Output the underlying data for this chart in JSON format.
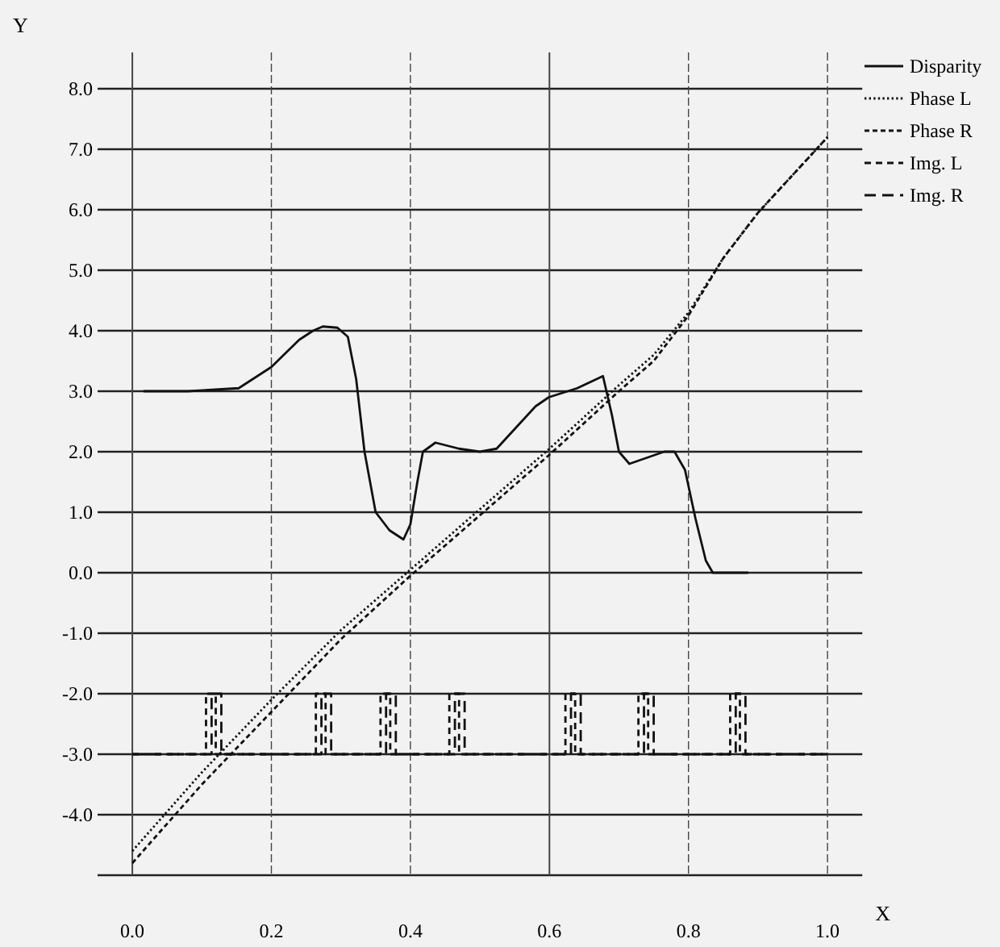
{
  "chart_data": {
    "type": "line",
    "xlabel": "X",
    "ylabel": "Y",
    "xlim": [
      -0.05,
      1.05
    ],
    "xticks": [
      {
        "value": 0,
        "label": "0.0"
      },
      {
        "value": 0.2,
        "label": "0.2"
      },
      {
        "value": 0.4,
        "label": "0.4"
      },
      {
        "value": 0.6,
        "label": "0.6"
      },
      {
        "value": 0.8,
        "label": "0.8"
      },
      {
        "value": 1,
        "label": "1.0"
      }
    ],
    "ylim": [
      -5,
      8.6
    ],
    "yticks": [
      {
        "value": -5,
        "label": null
      },
      {
        "value": -4,
        "label": "-4.0"
      },
      {
        "value": -3,
        "label": "-3.0"
      },
      {
        "value": -2,
        "label": "-2.0"
      },
      {
        "value": -1,
        "label": "-1.0"
      },
      {
        "value": 0,
        "label": "0.0"
      },
      {
        "value": 1,
        "label": "1.0"
      },
      {
        "value": 2,
        "label": "2.0"
      },
      {
        "value": 3,
        "label": "3.0"
      },
      {
        "value": 4,
        "label": "4.0"
      },
      {
        "value": 5,
        "label": "5.0"
      },
      {
        "value": 6,
        "label": "6.0"
      },
      {
        "value": 7,
        "label": "7.0"
      },
      {
        "value": 8,
        "label": "8.0"
      }
    ],
    "grid": true,
    "legend": "top right",
    "series": [
      {
        "name": "Disparity",
        "color": "#111111",
        "line_style": "solid",
        "x": [
          0.016,
          0.08,
          0.153,
          0.2,
          0.24,
          0.26,
          0.274,
          0.295,
          0.31,
          0.322,
          0.334,
          0.35,
          0.37,
          0.39,
          0.4,
          0.41,
          0.418,
          0.436,
          0.47,
          0.5,
          0.524,
          0.56,
          0.58,
          0.599,
          0.64,
          0.677,
          0.69,
          0.7,
          0.715,
          0.74,
          0.765,
          0.78,
          0.795,
          0.81,
          0.825,
          0.835,
          0.86,
          0.886
        ],
        "values": [
          3.0,
          3.0,
          3.05,
          3.4,
          3.85,
          4.0,
          4.07,
          4.05,
          3.9,
          3.2,
          2.0,
          1.0,
          0.7,
          0.55,
          0.8,
          1.5,
          2.0,
          2.15,
          2.05,
          2.0,
          2.05,
          2.5,
          2.75,
          2.9,
          3.05,
          3.25,
          2.6,
          2.0,
          1.8,
          1.9,
          2.0,
          2.0,
          1.7,
          0.9,
          0.2,
          0.0,
          0.0,
          0.0
        ]
      },
      {
        "name": "Phase L",
        "color": "#111111",
        "line_style": "dotted",
        "x": [
          0,
          0.1,
          0.2,
          0.3,
          0.4,
          0.5,
          0.6,
          0.7,
          0.75,
          0.8,
          0.85,
          0.9,
          1.0
        ],
        "values": [
          -4.6,
          -3.3,
          -2.1,
          -0.95,
          0.05,
          1.05,
          2.05,
          3.1,
          3.6,
          4.3,
          5.2,
          5.95,
          7.2
        ]
      },
      {
        "name": "Phase R",
        "color": "#111111",
        "line_style": "dashed",
        "x": [
          0,
          0.1,
          0.2,
          0.3,
          0.4,
          0.5,
          0.6,
          0.7,
          0.75,
          0.8,
          0.85,
          0.9,
          1.0
        ],
        "values": [
          -4.8,
          -3.5,
          -2.3,
          -1.1,
          -0.05,
          0.95,
          1.95,
          3.0,
          3.5,
          4.25,
          5.2,
          5.95,
          7.2
        ]
      },
      {
        "name": "Img. L",
        "color": "#111111",
        "line_style": "dashed",
        "x": [
          0,
          0.106,
          0.106,
          0.12,
          0.12,
          0.264,
          0.264,
          0.278,
          0.278,
          0.357,
          0.357,
          0.371,
          0.371,
          0.456,
          0.456,
          0.47,
          0.47,
          0.623,
          0.623,
          0.637,
          0.637,
          0.728,
          0.728,
          0.742,
          0.742,
          0.86,
          0.86,
          0.874,
          0.874,
          1.0
        ],
        "values": [
          -3,
          -3,
          -2,
          -2,
          -3,
          -3,
          -2,
          -2,
          -3,
          -3,
          -2,
          -2,
          -3,
          -3,
          -2,
          -2,
          -3,
          -3,
          -2,
          -2,
          -3,
          -3,
          -2,
          -2,
          -3,
          -3,
          -2,
          -2,
          -3,
          -3
        ]
      },
      {
        "name": "Img. R",
        "color": "#111111",
        "line_style": "dashed",
        "x": [
          0,
          0.114,
          0.114,
          0.128,
          0.128,
          0.272,
          0.272,
          0.286,
          0.286,
          0.365,
          0.365,
          0.379,
          0.379,
          0.464,
          0.464,
          0.478,
          0.478,
          0.631,
          0.631,
          0.645,
          0.645,
          0.736,
          0.736,
          0.75,
          0.75,
          0.868,
          0.868,
          0.882,
          0.882,
          1.0
        ],
        "values": [
          -3,
          -3,
          -2,
          -2,
          -3,
          -3,
          -2,
          -2,
          -3,
          -3,
          -2,
          -2,
          -3,
          -3,
          -2,
          -2,
          -3,
          -3,
          -2,
          -2,
          -3,
          -3,
          -2,
          -2,
          -3,
          -3,
          -2,
          -2,
          -3,
          -3
        ]
      }
    ]
  }
}
